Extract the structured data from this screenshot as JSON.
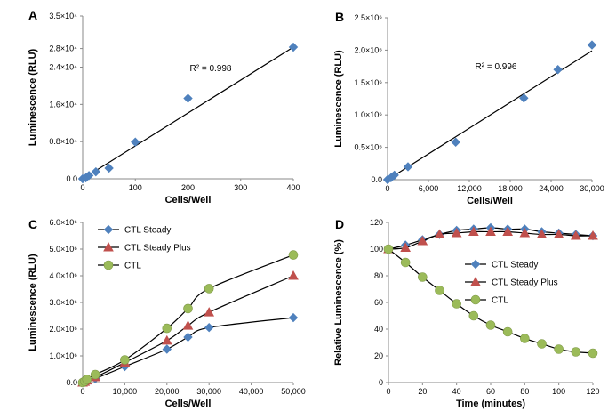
{
  "colors": {
    "blue": "#4f81bd",
    "red": "#c0504d",
    "green": "#9bbb59",
    "axis": "#888888",
    "line": "#000000"
  },
  "chart_data": [
    {
      "panel": "A",
      "type": "scatter",
      "xlabel": "Cells/Well",
      "ylabel": "Luminescence (RLU)",
      "xlim": [
        0,
        400
      ],
      "ylim": [
        0,
        35000
      ],
      "xticks": [
        "0",
        "100",
        "200",
        "300",
        "400"
      ],
      "yticks": [
        "0.0",
        "0.8×10⁴",
        "1.6×10⁴",
        "2.4×10⁴",
        "2.8×10⁴",
        "3.5×10⁴"
      ],
      "ytick_values": [
        0,
        8000,
        16000,
        24000,
        28000,
        35000
      ],
      "annotation": "R² = 0.998",
      "trendline": [
        [
          0,
          0
        ],
        [
          400,
          28300
        ]
      ],
      "series": [
        {
          "color": "blue",
          "marker": "diamond",
          "points": [
            [
              0,
              0
            ],
            [
              6,
              200
            ],
            [
              12,
              700
            ],
            [
              25,
              1500
            ],
            [
              50,
              2300
            ],
            [
              100,
              7900
            ],
            [
              200,
              17300
            ],
            [
              400,
              28300
            ]
          ]
        }
      ]
    },
    {
      "panel": "B",
      "type": "scatter",
      "xlabel": "Cells/Well",
      "ylabel": "Luminescence (RLU)",
      "xlim": [
        0,
        30000
      ],
      "ylim": [
        0,
        2500000
      ],
      "xticks": [
        "0",
        "6,000",
        "12,000",
        "18,000",
        "24,000",
        "30,000"
      ],
      "yticks": [
        "0.0",
        "0.5×10⁶",
        "1.0×10⁶",
        "1.5×10⁶",
        "2.0×10⁶",
        "2.5×10⁶"
      ],
      "annotation": "R² = 0.996",
      "trendline": [
        [
          0,
          0
        ],
        [
          30000,
          1990000
        ]
      ],
      "series": [
        {
          "color": "blue",
          "marker": "diamond",
          "points": [
            [
              0,
              0
            ],
            [
              500,
              30000
            ],
            [
              1000,
              70000
            ],
            [
              3000,
              200000
            ],
            [
              10000,
              580000
            ],
            [
              20000,
              1260000
            ],
            [
              25000,
              1700000
            ],
            [
              30000,
              2080000
            ]
          ]
        }
      ]
    },
    {
      "panel": "C",
      "type": "line",
      "xlabel": "Cells/Well",
      "ylabel": "Luminescence (RLU)",
      "xlim": [
        0,
        50000
      ],
      "ylim": [
        0,
        6000000
      ],
      "xticks": [
        "0",
        "10,000",
        "20,000",
        "30,000",
        "40,000",
        "50,000"
      ],
      "yticks": [
        "0.0",
        "1.0×10⁶",
        "2.0×10⁶",
        "3.0×10⁶",
        "4.0×10⁶",
        "5.0×10⁶",
        "6.0×10⁶"
      ],
      "legend": "top-left",
      "series": [
        {
          "name": "CTL Steady",
          "color": "blue",
          "marker": "diamond",
          "points": [
            [
              0,
              0
            ],
            [
              500,
              20000
            ],
            [
              1000,
              60000
            ],
            [
              3000,
              150000
            ],
            [
              10000,
              600000
            ],
            [
              20000,
              1250000
            ],
            [
              25000,
              1700000
            ],
            [
              30000,
              2060000
            ],
            [
              50000,
              2430000
            ]
          ]
        },
        {
          "name": "CTL Steady Plus",
          "color": "red",
          "marker": "triangle",
          "points": [
            [
              0,
              0
            ],
            [
              500,
              30000
            ],
            [
              1000,
              80000
            ],
            [
              3000,
              200000
            ],
            [
              10000,
              750000
            ],
            [
              20000,
              1570000
            ],
            [
              25000,
              2130000
            ],
            [
              30000,
              2630000
            ],
            [
              50000,
              4000000
            ]
          ]
        },
        {
          "name": "CTL",
          "color": "green",
          "marker": "circle",
          "points": [
            [
              0,
              0
            ],
            [
              500,
              50000
            ],
            [
              1000,
              120000
            ],
            [
              3000,
              300000
            ],
            [
              10000,
              850000
            ],
            [
              20000,
              2030000
            ],
            [
              25000,
              2770000
            ],
            [
              30000,
              3520000
            ],
            [
              50000,
              4780000
            ]
          ]
        }
      ]
    },
    {
      "panel": "D",
      "type": "line",
      "xlabel": "Time (minutes)",
      "ylabel": "Relative Luminescence (%)",
      "xlim": [
        0,
        120
      ],
      "ylim": [
        0,
        120
      ],
      "xticks": [
        "0",
        "20",
        "40",
        "60",
        "80",
        "100",
        "120"
      ],
      "yticks": [
        "0",
        "20",
        "40",
        "60",
        "80",
        "100",
        "120"
      ],
      "legend": "center-right",
      "series": [
        {
          "name": "CTL Steady",
          "color": "blue",
          "marker": "diamond",
          "points": [
            [
              0,
              100
            ],
            [
              10,
              103
            ],
            [
              20,
              107
            ],
            [
              30,
              111
            ],
            [
              40,
              114
            ],
            [
              50,
              115
            ],
            [
              60,
              116
            ],
            [
              70,
              115
            ],
            [
              80,
              115
            ],
            [
              90,
              113
            ],
            [
              100,
              112
            ],
            [
              110,
              111
            ],
            [
              120,
              110
            ]
          ]
        },
        {
          "name": "CTL Steady Plus",
          "color": "red",
          "marker": "triangle",
          "points": [
            [
              0,
              100
            ],
            [
              10,
              101
            ],
            [
              20,
              106
            ],
            [
              30,
              111
            ],
            [
              40,
              112
            ],
            [
              50,
              113
            ],
            [
              60,
              113
            ],
            [
              70,
              113
            ],
            [
              80,
              112
            ],
            [
              90,
              111
            ],
            [
              100,
              111
            ],
            [
              110,
              110
            ],
            [
              120,
              110
            ]
          ]
        },
        {
          "name": "CTL",
          "color": "green",
          "marker": "circle",
          "points": [
            [
              0,
              100
            ],
            [
              10,
              90
            ],
            [
              20,
              79
            ],
            [
              30,
              69
            ],
            [
              40,
              59
            ],
            [
              50,
              50
            ],
            [
              60,
              43
            ],
            [
              70,
              38
            ],
            [
              80,
              33
            ],
            [
              90,
              29
            ],
            [
              100,
              25
            ],
            [
              110,
              23
            ],
            [
              120,
              22
            ]
          ]
        }
      ]
    }
  ]
}
